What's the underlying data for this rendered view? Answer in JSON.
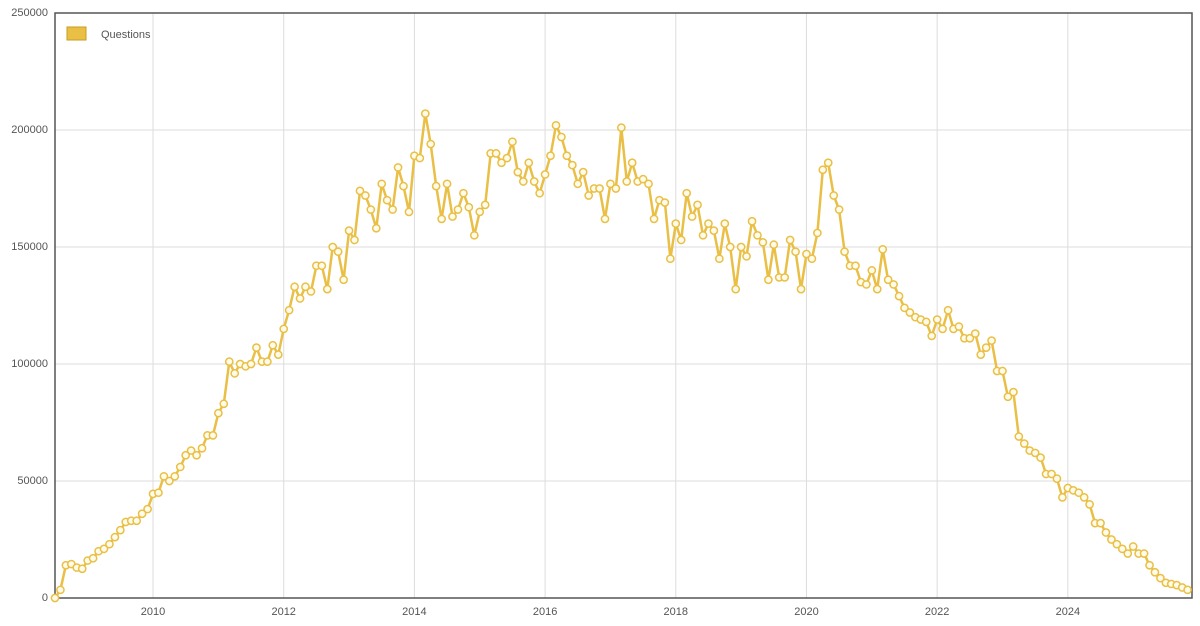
{
  "chart_data": {
    "type": "line",
    "x": [
      2008.5,
      2008.583,
      2008.667,
      2008.75,
      2008.833,
      2008.917,
      2009.0,
      2009.083,
      2009.167,
      2009.25,
      2009.333,
      2009.417,
      2009.5,
      2009.583,
      2009.667,
      2009.75,
      2009.833,
      2009.917,
      2010.0,
      2010.083,
      2010.167,
      2010.25,
      2010.333,
      2010.417,
      2010.5,
      2010.583,
      2010.667,
      2010.75,
      2010.833,
      2010.917,
      2011.0,
      2011.083,
      2011.167,
      2011.25,
      2011.333,
      2011.417,
      2011.5,
      2011.583,
      2011.667,
      2011.75,
      2011.833,
      2011.917,
      2012.0,
      2012.083,
      2012.167,
      2012.25,
      2012.333,
      2012.417,
      2012.5,
      2012.583,
      2012.667,
      2012.75,
      2012.833,
      2012.917,
      2013.0,
      2013.083,
      2013.167,
      2013.25,
      2013.333,
      2013.417,
      2013.5,
      2013.583,
      2013.667,
      2013.75,
      2013.833,
      2013.917,
      2014.0,
      2014.083,
      2014.167,
      2014.25,
      2014.333,
      2014.417,
      2014.5,
      2014.583,
      2014.667,
      2014.75,
      2014.833,
      2014.917,
      2015.0,
      2015.083,
      2015.167,
      2015.25,
      2015.333,
      2015.417,
      2015.5,
      2015.583,
      2015.667,
      2015.75,
      2015.833,
      2015.917,
      2016.0,
      2016.083,
      2016.167,
      2016.25,
      2016.333,
      2016.417,
      2016.5,
      2016.583,
      2016.667,
      2016.75,
      2016.833,
      2016.917,
      2017.0,
      2017.083,
      2017.167,
      2017.25,
      2017.333,
      2017.417,
      2017.5,
      2017.583,
      2017.667,
      2017.75,
      2017.833,
      2017.917,
      2018.0,
      2018.083,
      2018.167,
      2018.25,
      2018.333,
      2018.417,
      2018.5,
      2018.583,
      2018.667,
      2018.75,
      2018.833,
      2018.917,
      2019.0,
      2019.083,
      2019.167,
      2019.25,
      2019.333,
      2019.417,
      2019.5,
      2019.583,
      2019.667,
      2019.75,
      2019.833,
      2019.917,
      2020.0,
      2020.083,
      2020.167,
      2020.25,
      2020.333,
      2020.417,
      2020.5,
      2020.583,
      2020.667,
      2020.75,
      2020.833,
      2020.917,
      2021.0,
      2021.083,
      2021.167,
      2021.25,
      2021.333,
      2021.417,
      2021.5,
      2021.583,
      2021.667,
      2021.75,
      2021.833,
      2021.917,
      2022.0,
      2022.083,
      2022.167,
      2022.25,
      2022.333,
      2022.417,
      2022.5,
      2022.583,
      2022.667,
      2022.75,
      2022.833,
      2022.917,
      2023.0,
      2023.083,
      2023.167,
      2023.25,
      2023.333,
      2023.417,
      2023.5,
      2023.583,
      2023.667,
      2023.75,
      2023.833,
      2023.917,
      2024.0,
      2024.083,
      2024.167,
      2024.25,
      2024.333,
      2024.417,
      2024.5,
      2024.583,
      2024.667,
      2024.75,
      2024.833,
      2024.917,
      2025.0,
      2025.083,
      2025.167,
      2025.25,
      2025.333,
      2025.417,
      2025.5,
      2025.583,
      2025.667,
      2025.75,
      2025.833
    ],
    "series": [
      {
        "name": "Questions",
        "color": "#e9bf45",
        "values": [
          0,
          3500,
          14000,
          14500,
          13000,
          12500,
          16000,
          17000,
          20000,
          21000,
          23000,
          26000,
          29000,
          32500,
          33000,
          33000,
          36000,
          38000,
          44500,
          45000,
          52000,
          50000,
          52000,
          56000,
          61000,
          63000,
          61000,
          64000,
          69500,
          69500,
          79000,
          83000,
          101000,
          96000,
          100000,
          99000,
          100000,
          107000,
          101000,
          101000,
          108000,
          104000,
          115000,
          123000,
          133000,
          128000,
          133000,
          131000,
          142000,
          142000,
          132000,
          150000,
          148000,
          136000,
          157000,
          153000,
          174000,
          172000,
          166000,
          158000,
          177000,
          170000,
          166000,
          184000,
          176000,
          165000,
          189000,
          188000,
          207000,
          194000,
          176000,
          162000,
          177000,
          163000,
          166000,
          173000,
          167000,
          155000,
          165000,
          168000,
          190000,
          190000,
          186000,
          188000,
          195000,
          182000,
          178000,
          186000,
          178000,
          173000,
          181000,
          189000,
          202000,
          197000,
          189000,
          185000,
          177000,
          182000,
          172000,
          175000,
          175000,
          162000,
          177000,
          175000,
          201000,
          178000,
          186000,
          178000,
          179000,
          177000,
          162000,
          170000,
          169000,
          145000,
          160000,
          153000,
          173000,
          163000,
          168000,
          155000,
          160000,
          157000,
          145000,
          160000,
          150000,
          132000,
          150000,
          146000,
          161000,
          155000,
          152000,
          136000,
          151000,
          137000,
          137000,
          153000,
          148000,
          132000,
          147000,
          145000,
          156000,
          183000,
          186000,
          172000,
          166000,
          148000,
          142000,
          142000,
          135000,
          134000,
          140000,
          132000,
          149000,
          136000,
          134000,
          129000,
          124000,
          122000,
          120000,
          119000,
          118000,
          112000,
          119000,
          115000,
          123000,
          115000,
          116000,
          111000,
          111000,
          113000,
          104000,
          107000,
          110000,
          97000,
          97000,
          86000,
          88000,
          69000,
          66000,
          63000,
          62000,
          60000,
          53000,
          53000,
          51000,
          43000,
          47000,
          46000,
          45000,
          43000,
          40000,
          32000,
          32000,
          28000,
          25000,
          23000,
          21000,
          19000,
          22000,
          19000,
          19000,
          14000,
          11000,
          8500,
          6500,
          6000,
          5500,
          4500,
          3500
        ]
      }
    ],
    "xlim": [
      2008.5,
      2025.9
    ],
    "xticks": [
      2010,
      2012,
      2014,
      2016,
      2018,
      2020,
      2022,
      2024
    ],
    "ylim": [
      0,
      250000
    ],
    "yticks": [
      0,
      50000,
      100000,
      150000,
      200000,
      250000
    ],
    "grid": true,
    "legend": "top-left"
  }
}
